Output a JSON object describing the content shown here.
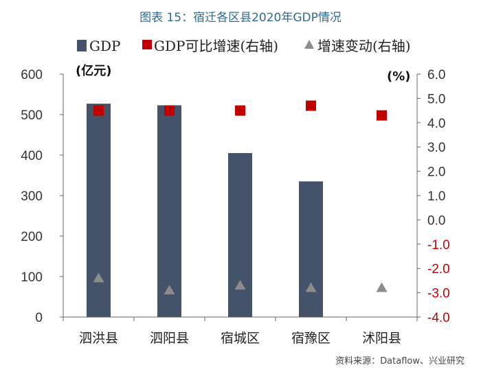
{
  "title": "图表 15：宿迁各区县2020年GDP情况",
  "source": "资料来源：Dataflow、兴业研究",
  "colors": {
    "bar": "#44536a",
    "square": "#c00000",
    "triangle": "#8c8c8c",
    "negative_tick": "#c00000",
    "title": "#2f6a8f"
  },
  "chart_data": {
    "type": "bar",
    "categories": [
      "泗洪县",
      "泗阳县",
      "宿城区",
      "宿豫区",
      "沭阳县"
    ],
    "series": [
      {
        "name": "GDP",
        "type": "bar",
        "axis": "left",
        "values": [
          527,
          523,
          405,
          335,
          null
        ]
      },
      {
        "name": "GDP可比增速(右轴)",
        "type": "scatter",
        "marker": "square",
        "axis": "right",
        "values": [
          4.5,
          4.5,
          4.5,
          4.7,
          4.3
        ]
      },
      {
        "name": "增速变动(右轴)",
        "type": "scatter",
        "marker": "triangle",
        "axis": "right",
        "values": [
          -2.4,
          -2.9,
          -2.7,
          -2.8,
          -2.8
        ]
      }
    ],
    "y_left": {
      "label": "(亿元)",
      "range": [
        0,
        600
      ],
      "ticks": [
        "0",
        "100",
        "200",
        "300",
        "400",
        "500",
        "600"
      ]
    },
    "y_right": {
      "label": "(%)",
      "range": [
        -4.0,
        6.0
      ],
      "ticks": [
        "-4.0",
        "-3.0",
        "-2.0",
        "-1.0",
        "0.0",
        "1.0",
        "2.0",
        "3.0",
        "4.0",
        "5.0",
        "6.0"
      ]
    },
    "legend_position": "top",
    "grid": false
  }
}
